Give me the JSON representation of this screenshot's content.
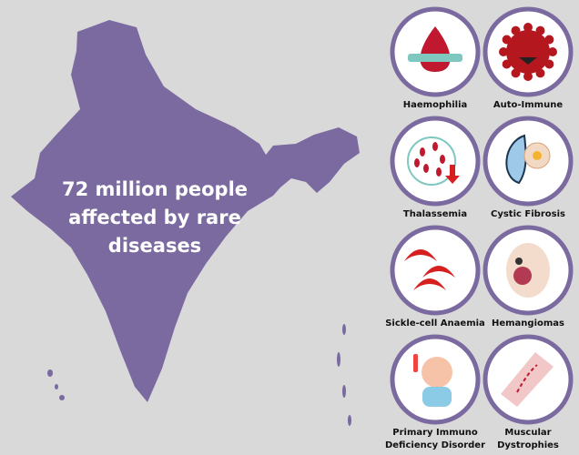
{
  "headline": {
    "lines": [
      "72  million people",
      "affected by rare",
      "diseases"
    ]
  },
  "diseases": [
    {
      "label": [
        "Haemophilia"
      ]
    },
    {
      "label": [
        "Auto-Immune"
      ]
    },
    {
      "label": [
        "Thalassemia"
      ]
    },
    {
      "label": [
        "Cystic Fibrosis"
      ]
    },
    {
      "label": [
        "Sickle-cell Anaemia"
      ]
    },
    {
      "label": [
        "Hemangiomas"
      ]
    },
    {
      "label": [
        "Primary Immuno",
        "Deficiency Disorder"
      ]
    },
    {
      "label": [
        "Muscular",
        "Dystrophies"
      ]
    }
  ]
}
